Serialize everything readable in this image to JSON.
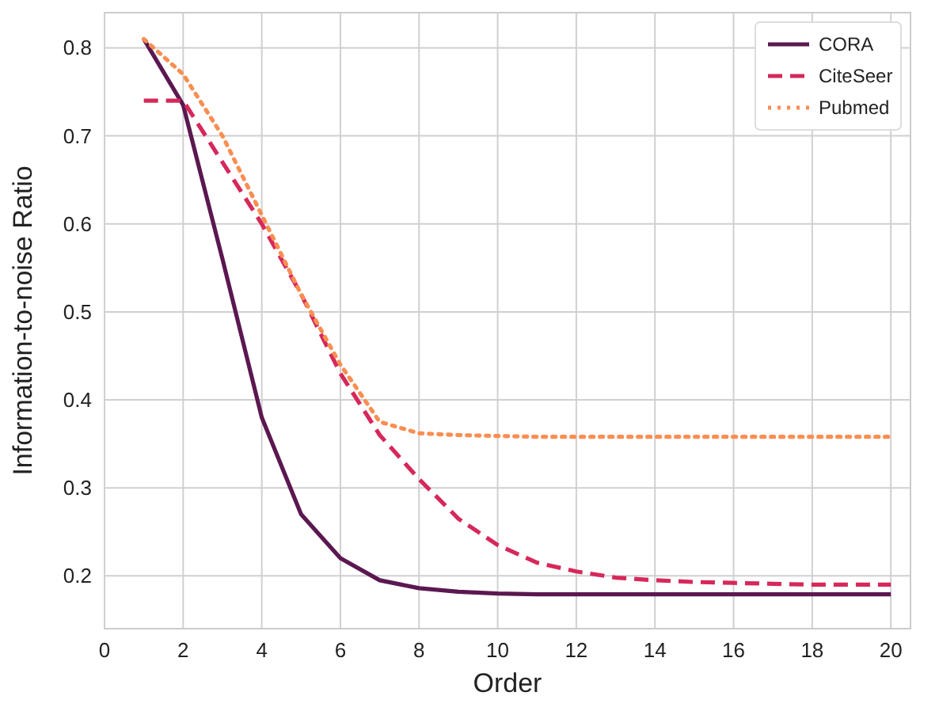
{
  "chart_data": {
    "type": "line",
    "xlabel": "Order",
    "ylabel": "Information-to-noise Ratio",
    "x": [
      1,
      2,
      3,
      4,
      5,
      6,
      7,
      8,
      9,
      10,
      11,
      12,
      13,
      14,
      15,
      16,
      17,
      18,
      19,
      20
    ],
    "series": [
      {
        "name": "CORA",
        "color": "#5b1850",
        "line_style": "solid",
        "values": [
          0.81,
          0.735,
          0.56,
          0.38,
          0.27,
          0.22,
          0.195,
          0.186,
          0.182,
          0.18,
          0.179,
          0.179,
          0.179,
          0.179,
          0.179,
          0.179,
          0.179,
          0.179,
          0.179,
          0.179
        ]
      },
      {
        "name": "CiteSeer",
        "color": "#d6285a",
        "line_style": "dashed",
        "values": [
          0.74,
          0.74,
          0.67,
          0.6,
          0.52,
          0.43,
          0.36,
          0.31,
          0.265,
          0.235,
          0.215,
          0.205,
          0.198,
          0.195,
          0.193,
          0.192,
          0.191,
          0.19,
          0.19,
          0.19
        ]
      },
      {
        "name": "Pubmed",
        "color": "#f98e52",
        "line_style": "dotted",
        "values": [
          0.81,
          0.77,
          0.7,
          0.61,
          0.52,
          0.44,
          0.375,
          0.362,
          0.36,
          0.359,
          0.358,
          0.358,
          0.358,
          0.358,
          0.358,
          0.358,
          0.358,
          0.358,
          0.358,
          0.358
        ]
      }
    ],
    "xlim": [
      0,
      20.5
    ],
    "xticks": [
      0,
      2,
      4,
      6,
      8,
      10,
      12,
      14,
      16,
      18,
      20
    ],
    "ylim": [
      0.14,
      0.84
    ],
    "yticks": [
      0.2,
      0.3,
      0.4,
      0.5,
      0.6,
      0.7,
      0.8
    ],
    "grid": true,
    "legend": "top right",
    "marker": "none"
  }
}
